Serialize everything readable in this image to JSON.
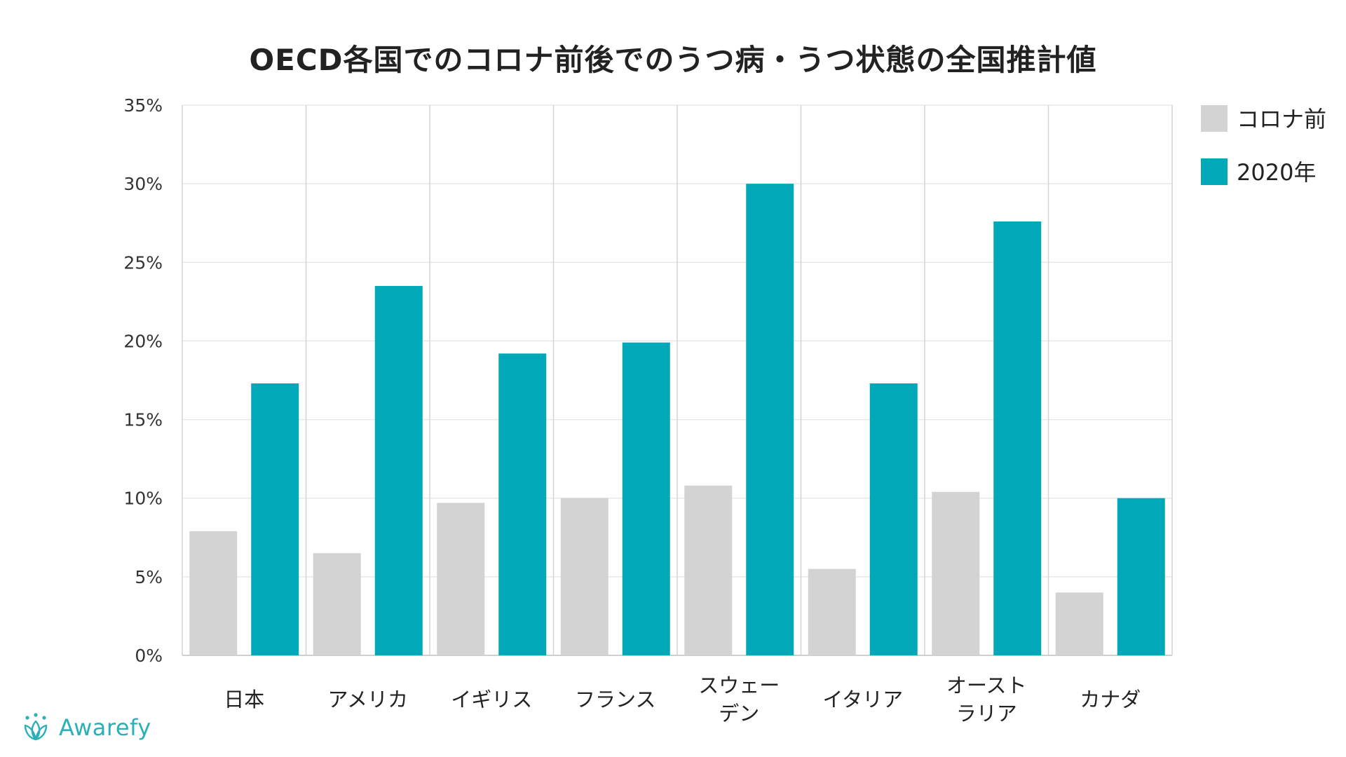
{
  "chart_data": {
    "type": "bar",
    "title": "OECD各国でのコロナ前後でのうつ病・うつ状態の全国推計値",
    "categories": [
      [
        "日本"
      ],
      [
        "アメリカ"
      ],
      [
        "イギリス"
      ],
      [
        "フランス"
      ],
      [
        "スウェー",
        "デン"
      ],
      [
        "イタリア"
      ],
      [
        "オースト",
        "ラリア"
      ],
      [
        "カナダ"
      ]
    ],
    "series": [
      {
        "name": "コロナ前",
        "color": "#d3d3d3",
        "values": [
          7.9,
          6.5,
          9.7,
          10.0,
          10.8,
          5.5,
          10.4,
          4.0
        ]
      },
      {
        "name": "2020年",
        "color": "#00a8b8",
        "values": [
          17.3,
          23.5,
          19.2,
          19.9,
          30.0,
          17.3,
          27.6,
          10.0
        ]
      }
    ],
    "y_ticks": [
      "0%",
      "5%",
      "10%",
      "15%",
      "20%",
      "25%",
      "30%",
      "35%"
    ],
    "ylim": [
      0,
      35
    ],
    "xlabel": "",
    "ylabel": "",
    "grid": true,
    "legend_position": "right"
  },
  "logo": {
    "text": "Awarefy",
    "icon": "lotus-icon",
    "color": "#2bb0b8"
  }
}
